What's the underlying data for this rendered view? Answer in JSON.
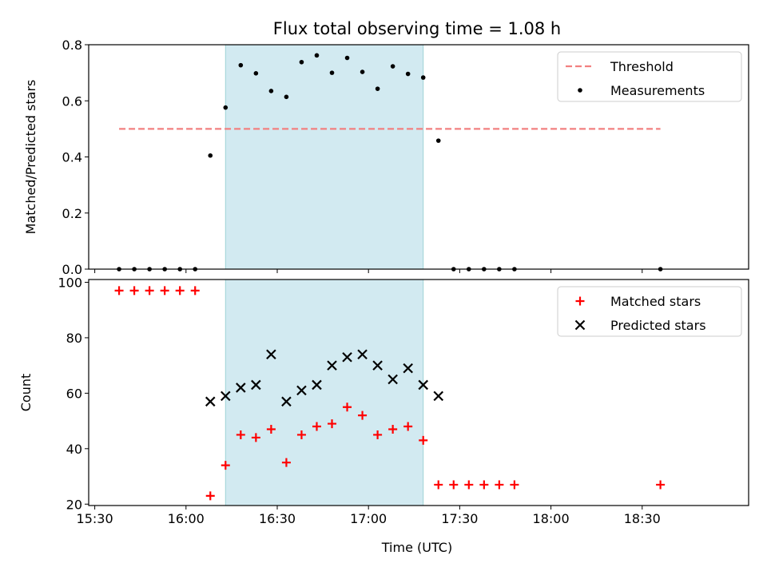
{
  "figure": {
    "title": "Flux total observing time = 1.08 h",
    "xlabel": "Time (UTC)"
  },
  "colors": {
    "threshold": "#f28080",
    "measurement": "#000000",
    "matched": "#ff0000",
    "predicted": "#000000",
    "observing_window": "#add8e6"
  },
  "chart_data": [
    {
      "type": "scatter",
      "title": "Flux total observing time = 1.08 h",
      "ylabel": "Matched/Predicted stars",
      "xlim": [
        "15:28",
        "19:05"
      ],
      "ylim": [
        0,
        0.8
      ],
      "x_ticks": [
        "15:30",
        "16:00",
        "16:30",
        "17:00",
        "17:30",
        "18:00",
        "18:30"
      ],
      "x_tick_labels_shown": false,
      "y_ticks": [
        "0.0",
        "0.2",
        "0.4",
        "0.6",
        "0.8"
      ],
      "shaded_interval": [
        "16:13",
        "17:18"
      ],
      "legend_position": "upper right",
      "legend": [
        "Threshold",
        "Measurements"
      ],
      "series": [
        {
          "name": "Threshold",
          "style": "dashed-line",
          "x": [
            "15:38",
            "18:36"
          ],
          "y": [
            0.5,
            0.5
          ]
        },
        {
          "name": "Measurements",
          "style": "dot",
          "x": [
            "15:38",
            "15:43",
            "15:48",
            "15:53",
            "15:58",
            "16:03",
            "16:08",
            "16:13",
            "16:18",
            "16:23",
            "16:28",
            "16:33",
            "16:38",
            "16:43",
            "16:48",
            "16:53",
            "16:58",
            "17:03",
            "17:08",
            "17:13",
            "17:18",
            "17:23",
            "17:28",
            "17:33",
            "17:38",
            "17:43",
            "17:48",
            "18:36"
          ],
          "y": [
            0.0,
            0.0,
            0.0,
            0.0,
            0.0,
            0.0,
            0.405,
            0.576,
            0.727,
            0.698,
            0.635,
            0.614,
            0.738,
            0.762,
            0.7,
            0.753,
            0.703,
            0.643,
            0.723,
            0.696,
            0.683,
            0.458,
            0.0,
            0.0,
            0.0,
            0.0,
            0.0,
            0.0
          ]
        }
      ]
    },
    {
      "type": "scatter",
      "xlabel": "Time (UTC)",
      "ylabel": "Count",
      "xlim": [
        "15:28",
        "19:05"
      ],
      "ylim": [
        19.5,
        101
      ],
      "x_ticks": [
        "15:30",
        "16:00",
        "16:30",
        "17:00",
        "17:30",
        "18:00",
        "18:30"
      ],
      "y_ticks": [
        "20",
        "40",
        "60",
        "80",
        "100"
      ],
      "shaded_interval": [
        "16:13",
        "17:18"
      ],
      "legend_position": "upper right",
      "legend": [
        "Matched stars",
        "Predicted stars"
      ],
      "series": [
        {
          "name": "Matched stars",
          "marker": "plus",
          "x": [
            "15:38",
            "15:43",
            "15:48",
            "15:53",
            "15:58",
            "16:03",
            "16:08",
            "16:13",
            "16:18",
            "16:23",
            "16:28",
            "16:33",
            "16:38",
            "16:43",
            "16:48",
            "16:53",
            "16:58",
            "17:03",
            "17:08",
            "17:13",
            "17:18",
            "17:23",
            "17:28",
            "17:33",
            "17:38",
            "17:43",
            "17:48",
            "18:36"
          ],
          "y": [
            97,
            97,
            97,
            97,
            97,
            97,
            23,
            34,
            45,
            44,
            47,
            35,
            45,
            48,
            49,
            55,
            52,
            45,
            47,
            48,
            43,
            27,
            27,
            27,
            27,
            27,
            27,
            27
          ]
        },
        {
          "name": "Predicted stars",
          "marker": "x",
          "x": [
            "16:08",
            "16:13",
            "16:18",
            "16:23",
            "16:28",
            "16:33",
            "16:38",
            "16:43",
            "16:48",
            "16:53",
            "16:58",
            "17:03",
            "17:08",
            "17:13",
            "17:18",
            "17:23"
          ],
          "y": [
            57,
            59,
            62,
            63,
            74,
            57,
            61,
            63,
            70,
            73,
            74,
            70,
            65,
            69,
            63,
            59
          ]
        }
      ]
    }
  ]
}
